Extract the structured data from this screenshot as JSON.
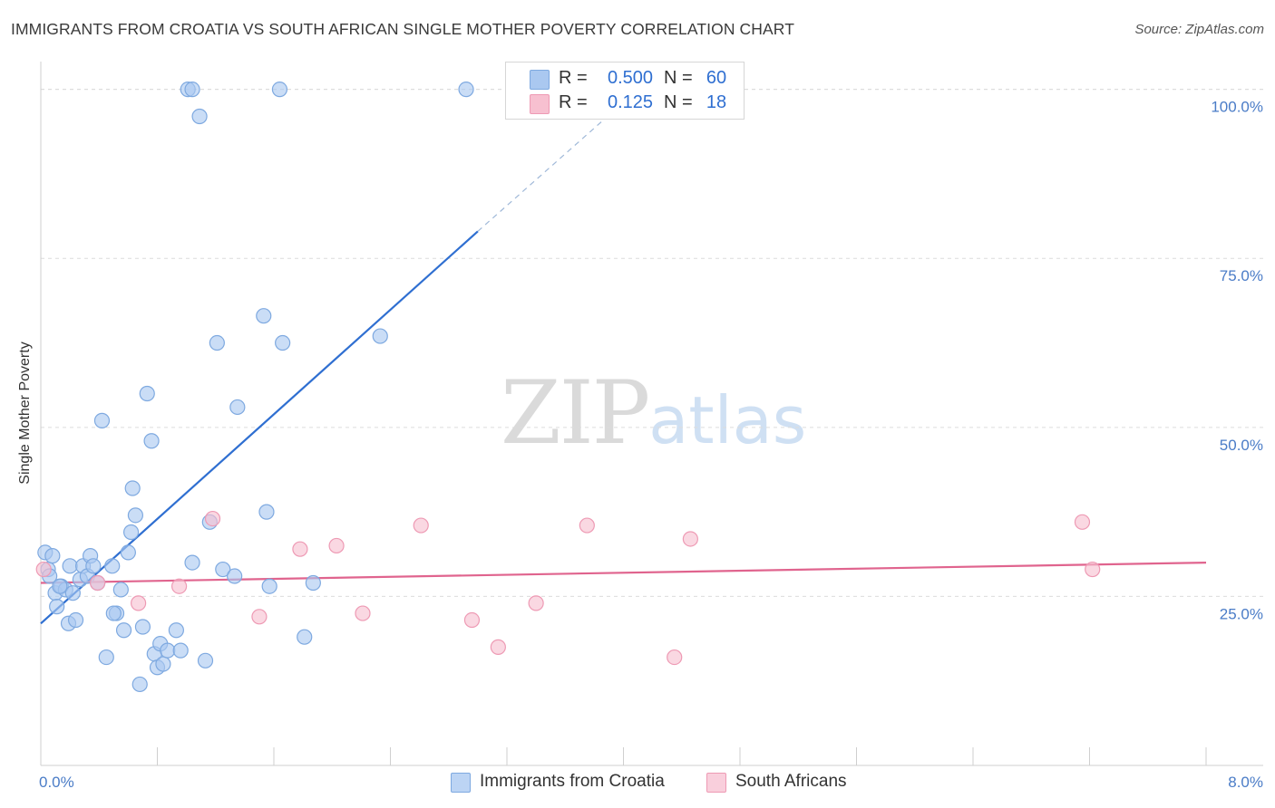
{
  "header": {
    "title": "IMMIGRANTS FROM CROATIA VS SOUTH AFRICAN SINGLE MOTHER POVERTY CORRELATION CHART",
    "source": "Source: ZipAtlas.com"
  },
  "watermark": {
    "zip": "ZIP",
    "atlas": "atlas"
  },
  "legend": {
    "rows": [
      {
        "r_label": "R =",
        "r_value": "0.500",
        "n_label": "N =",
        "n_value": "60",
        "color": "#aac8f0",
        "stroke": "#7ea9e0"
      },
      {
        "r_label": "R =",
        "r_value": "0.125",
        "n_label": "N =",
        "n_value": "18",
        "color": "#f7c0d0",
        "stroke": "#ee9ab4"
      }
    ]
  },
  "bottom_legend": [
    {
      "label": "Immigrants from Croatia",
      "color": "#bcd4f4",
      "stroke": "#7ea9e0"
    },
    {
      "label": "South Africans",
      "color": "#f9cfdc",
      "stroke": "#ee9ab4"
    }
  ],
  "chart_data": {
    "type": "scatter",
    "title": "IMMIGRANTS FROM CROATIA VS SOUTH AFRICAN SINGLE MOTHER POVERTY CORRELATION CHART",
    "xlabel": "",
    "ylabel": "Single Mother Poverty",
    "xlim": [
      0,
      8
    ],
    "ylim": [
      0,
      102.5
    ],
    "x_tick_labels": [
      "0.0%",
      "8.0%"
    ],
    "y_ticks": [
      25,
      50,
      75,
      100
    ],
    "y_tick_labels": [
      "25.0%",
      "50.0%",
      "75.0%",
      "100.0%"
    ],
    "grid": true,
    "colors": {
      "blue": "#2f6fd1",
      "pink": "#e0648e"
    },
    "series": [
      {
        "name": "Immigrants from Croatia",
        "color": "#aac8f0",
        "stroke": "#7ea9e0",
        "points": [
          [
            0.03,
            31.5
          ],
          [
            0.05,
            29.0
          ],
          [
            0.08,
            31.0
          ],
          [
            0.1,
            25.5
          ],
          [
            0.11,
            23.5
          ],
          [
            0.14,
            26.5
          ],
          [
            0.17,
            26.0
          ],
          [
            0.19,
            21.0
          ],
          [
            0.2,
            29.5
          ],
          [
            0.22,
            25.5
          ],
          [
            0.24,
            21.5
          ],
          [
            0.27,
            27.5
          ],
          [
            0.29,
            29.5
          ],
          [
            0.32,
            28.0
          ],
          [
            0.34,
            31.0
          ],
          [
            0.36,
            29.5
          ],
          [
            0.39,
            27.0
          ],
          [
            0.42,
            51.0
          ],
          [
            0.45,
            16.0
          ],
          [
            0.49,
            29.5
          ],
          [
            0.52,
            22.5
          ],
          [
            0.55,
            26.0
          ],
          [
            0.57,
            20.0
          ],
          [
            0.6,
            31.5
          ],
          [
            0.62,
            34.5
          ],
          [
            0.63,
            41.0
          ],
          [
            0.65,
            37.0
          ],
          [
            0.7,
            20.5
          ],
          [
            0.73,
            55.0
          ],
          [
            0.76,
            48.0
          ],
          [
            0.78,
            16.5
          ],
          [
            0.8,
            14.5
          ],
          [
            0.82,
            18.0
          ],
          [
            0.84,
            15.0
          ],
          [
            0.87,
            17.0
          ],
          [
            0.93,
            20.0
          ],
          [
            0.96,
            17.0
          ],
          [
            1.01,
            100.0
          ],
          [
            1.04,
            100.0
          ],
          [
            1.09,
            96.0
          ],
          [
            1.13,
            15.5
          ],
          [
            1.16,
            36.0
          ],
          [
            1.21,
            62.5
          ],
          [
            1.25,
            29.0
          ],
          [
            1.33,
            28.0
          ],
          [
            1.35,
            53.0
          ],
          [
            1.53,
            66.5
          ],
          [
            1.55,
            37.5
          ],
          [
            1.57,
            26.5
          ],
          [
            1.64,
            100.0
          ],
          [
            1.66,
            62.5
          ],
          [
            1.81,
            19.0
          ],
          [
            1.87,
            27.0
          ],
          [
            2.33,
            63.5
          ],
          [
            2.92,
            100.0
          ],
          [
            0.68,
            12.0
          ],
          [
            0.5,
            22.5
          ],
          [
            1.04,
            30.0
          ],
          [
            0.13,
            26.5
          ],
          [
            0.06,
            28.0
          ]
        ]
      },
      {
        "name": "South Africans",
        "color": "#f7c0d0",
        "stroke": "#ee9ab4",
        "points": [
          [
            0.02,
            29.0
          ],
          [
            0.39,
            27.0
          ],
          [
            0.67,
            24.0
          ],
          [
            0.95,
            26.5
          ],
          [
            1.18,
            36.5
          ],
          [
            1.5,
            22.0
          ],
          [
            1.78,
            32.0
          ],
          [
            2.03,
            32.5
          ],
          [
            2.21,
            22.5
          ],
          [
            2.61,
            35.5
          ],
          [
            2.96,
            21.5
          ],
          [
            3.14,
            17.5
          ],
          [
            3.4,
            24.0
          ],
          [
            3.75,
            35.5
          ],
          [
            4.35,
            16.0
          ],
          [
            4.46,
            33.5
          ],
          [
            7.15,
            36.0
          ],
          [
            7.22,
            29.0
          ]
        ]
      }
    ],
    "trend_lines": [
      {
        "series": "Immigrants from Croatia",
        "x0": 0.0,
        "y0": 21.0,
        "x1": 3.0,
        "y1": 79.0,
        "dash_to_x": 4.1,
        "dash_to_y": 100.0
      },
      {
        "series": "South Africans",
        "x0": 0.0,
        "y0": 27.0,
        "x1": 8.0,
        "y1": 30.0
      }
    ]
  }
}
